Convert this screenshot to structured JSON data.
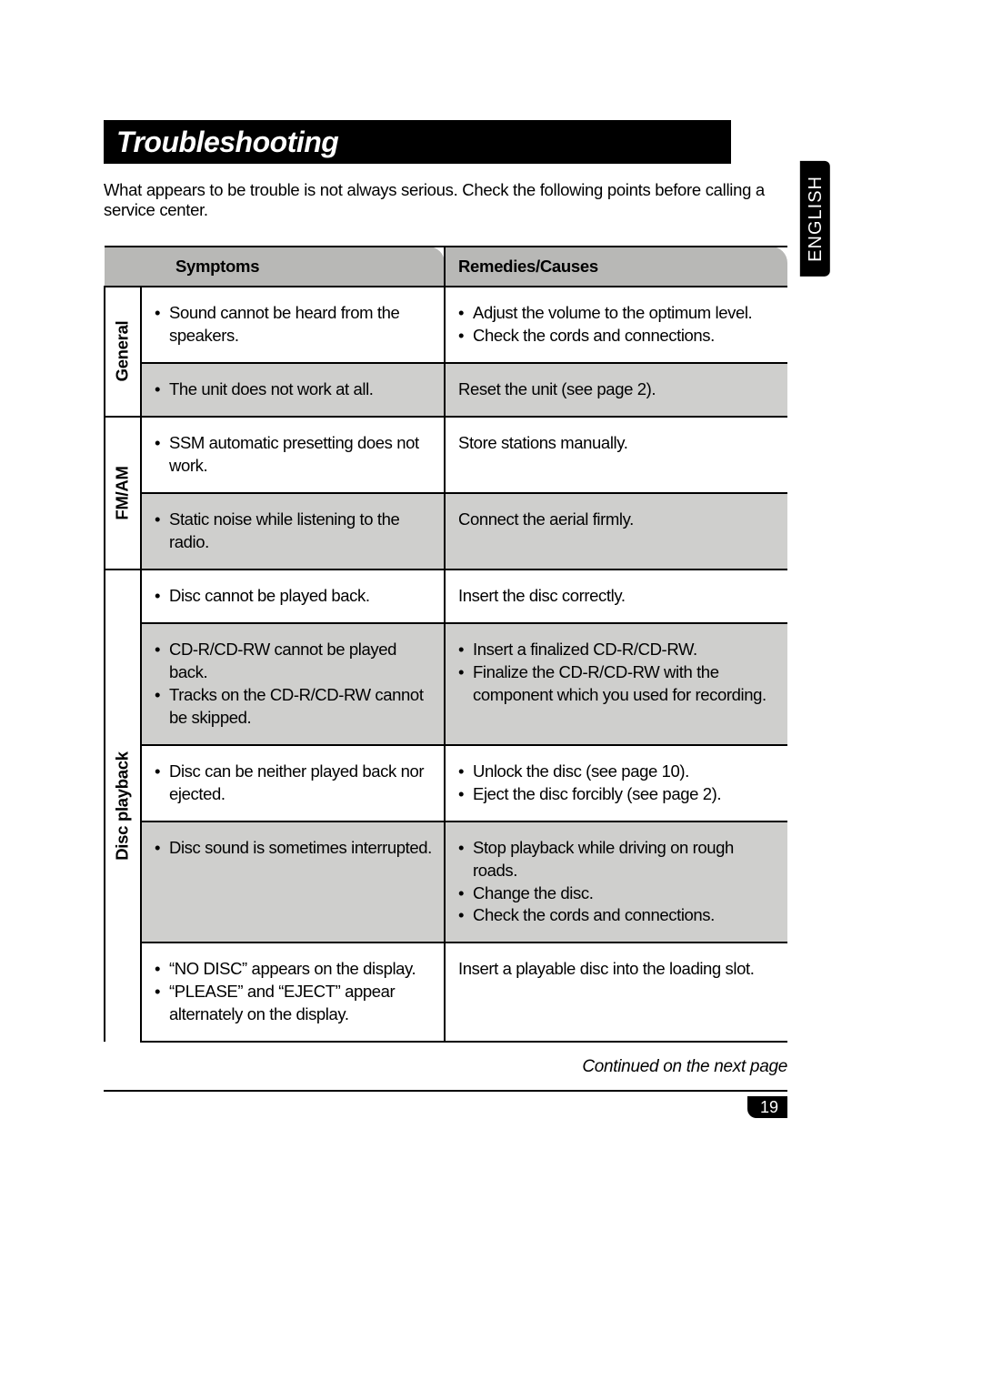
{
  "title": "Troubleshooting",
  "intro": "What appears to be trouble is not always serious. Check the following points before calling a service center.",
  "language_tab": "ENGLISH",
  "headers": {
    "symptoms": "Symptoms",
    "remedies": "Remedies/Causes"
  },
  "sections": [
    {
      "category": "General",
      "rows": [
        {
          "grey": false,
          "symptoms": [
            "Sound cannot be heard from the speakers."
          ],
          "remedies": [
            "Adjust the volume to the optimum level.",
            "Check the cords and connections."
          ]
        },
        {
          "grey": true,
          "symptoms": [
            "The unit does not work at all."
          ],
          "remedies_plain": "Reset the unit (see page 2)."
        }
      ]
    },
    {
      "category": "FM/AM",
      "rows": [
        {
          "grey": false,
          "symptoms": [
            "SSM automatic presetting does not work."
          ],
          "remedies_plain": "Store stations manually."
        },
        {
          "grey": true,
          "symptoms": [
            "Static noise while listening to the radio."
          ],
          "remedies_plain": "Connect the aerial firmly."
        }
      ]
    },
    {
      "category": "Disc playback",
      "rows": [
        {
          "grey": false,
          "symptoms": [
            "Disc cannot be played back."
          ],
          "remedies_plain": "Insert the disc correctly."
        },
        {
          "grey": true,
          "symptoms": [
            "CD-R/CD-RW cannot be played back.",
            "Tracks on the CD-R/CD-RW cannot be skipped."
          ],
          "remedies": [
            "Insert a finalized CD-R/CD-RW.",
            "Finalize the CD-R/CD-RW with the component which you used for recording."
          ]
        },
        {
          "grey": false,
          "symptoms": [
            "Disc can be neither played back nor ejected."
          ],
          "remedies": [
            "Unlock the disc (see page 10).",
            "Eject the disc forcibly (see page 2)."
          ]
        },
        {
          "grey": true,
          "symptoms": [
            "Disc sound is sometimes interrupted."
          ],
          "remedies": [
            "Stop playback while driving on rough roads.",
            "Change the disc.",
            "Check the cords and connections."
          ]
        },
        {
          "grey": false,
          "symptoms": [
            "“NO DISC” appears on the display.",
            "“PLEASE” and “EJECT” appear alternately on the display."
          ],
          "remedies_plain": "Insert a playable disc into the loading slot."
        }
      ]
    }
  ],
  "continued": "Continued on the next page",
  "page_number": "19",
  "colors": {
    "header_bg": "#b8b8b6",
    "grey_row": "#cfcfcd",
    "black": "#000000",
    "white": "#ffffff"
  }
}
